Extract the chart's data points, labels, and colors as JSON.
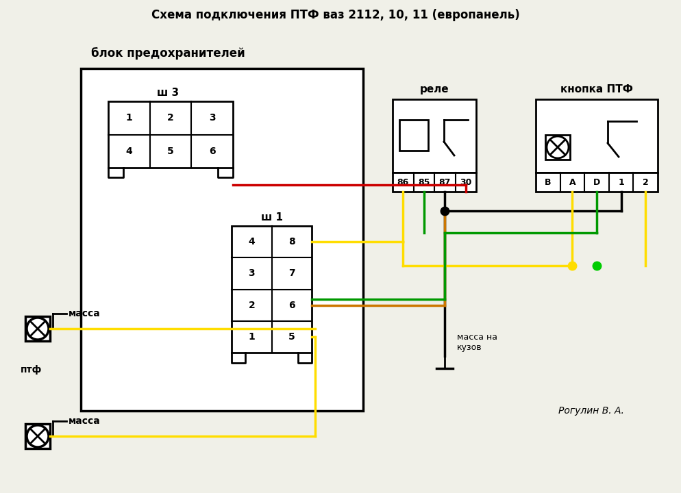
{
  "title": "Схема подключения ПТФ ваз 2112, 10, 11 (европанель)",
  "bg_color": "#f0f0e8",
  "wire_red": "#cc0000",
  "wire_yellow": "#ffdd00",
  "wire_green": "#009900",
  "wire_black": "#000000",
  "wire_orange": "#cc7700",
  "author": "Рогулин В. А.",
  "label_fuse": "блок предохранителей",
  "label_sh3": "ш 3",
  "label_sh1": "ш 1",
  "label_relay": "реле",
  "label_button": "кнопка ПТФ",
  "label_ptf": "птф",
  "label_massa": "масса",
  "label_massa_kuzov": "масса на\nкузов",
  "pins_relay": [
    "86",
    "85",
    "87",
    "30"
  ],
  "pins_button": [
    "B",
    "A",
    "D",
    "1",
    "2"
  ],
  "sh3_row1": [
    "1",
    "2",
    "3"
  ],
  "sh3_row2": [
    "4",
    "5",
    "6"
  ],
  "sh1_rows": [
    [
      "4",
      "8"
    ],
    [
      "3",
      "7"
    ],
    [
      "2",
      "6"
    ],
    [
      "1",
      "5"
    ]
  ]
}
